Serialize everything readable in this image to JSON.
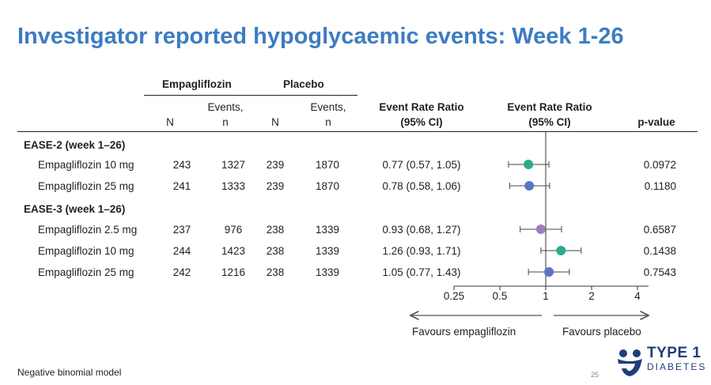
{
  "title": "Investigator reported hypoglycaemic events: Week 1-26",
  "groups": {
    "empa": "Empagliflozin",
    "placebo": "Placebo"
  },
  "columns": {
    "n": "N",
    "events": "Events,\nn",
    "err_text": "Event Rate Ratio\n(95% CI)",
    "err_plot": "Event Rate Ratio\n(95% CI)",
    "pvalue": "p-value"
  },
  "sections": [
    {
      "label": "EASE-2 (week 1–26)"
    },
    {
      "label": "EASE-3 (week 1–26)"
    }
  ],
  "rows": [
    {
      "label": "Empagliflozin 10 mg",
      "empa_n": "243",
      "empa_events": "1327",
      "pbo_n": "239",
      "pbo_events": "1870",
      "ratio_text": "0.77 (0.57, 1.05)",
      "p": "0.0972"
    },
    {
      "label": "Empagliflozin 25 mg",
      "empa_n": "241",
      "empa_events": "1333",
      "pbo_n": "239",
      "pbo_events": "1870",
      "ratio_text": "0.78 (0.58, 1.06)",
      "p": "0.1180"
    },
    {
      "label": "Empagliflozin 2.5 mg",
      "empa_n": "237",
      "empa_events": "976",
      "pbo_n": "238",
      "pbo_events": "1339",
      "ratio_text": "0.93 (0.68, 1.27)",
      "p": "0.6587"
    },
    {
      "label": "Empagliflozin 10 mg",
      "empa_n": "244",
      "empa_events": "1423",
      "pbo_n": "238",
      "pbo_events": "1339",
      "ratio_text": "1.26 (0.93, 1.71)",
      "p": "0.1438"
    },
    {
      "label": "Empagliflozin 25 mg",
      "empa_n": "242",
      "empa_events": "1216",
      "pbo_n": "238",
      "pbo_events": "1339",
      "ratio_text": "1.05 (0.77, 1.43)",
      "p": "0.7543"
    }
  ],
  "chart_data": {
    "type": "scatter",
    "xscale": "log",
    "xlim": [
      0.25,
      4
    ],
    "xticks": [
      "0.25",
      "0.5",
      "1",
      "2",
      "4"
    ],
    "reference_line": 1,
    "points": [
      {
        "estimate": 0.77,
        "lower": 0.57,
        "upper": 1.05,
        "color": "#2aab8e"
      },
      {
        "estimate": 0.78,
        "lower": 0.58,
        "upper": 1.06,
        "color": "#5b74c4"
      },
      {
        "estimate": 0.93,
        "lower": 0.68,
        "upper": 1.27,
        "color": "#9a7fba"
      },
      {
        "estimate": 1.26,
        "lower": 0.93,
        "upper": 1.71,
        "color": "#2aab8e"
      },
      {
        "estimate": 1.05,
        "lower": 0.77,
        "upper": 1.43,
        "color": "#5b74c4"
      }
    ],
    "favours_left": "Favours empagliflozin",
    "favours_right": "Favours placebo"
  },
  "footnote": "Negative binomial model",
  "page_number": "25",
  "logo": {
    "line1": "TYPE 1",
    "line2": "DIABETES",
    "color": "#1f3d7a"
  }
}
